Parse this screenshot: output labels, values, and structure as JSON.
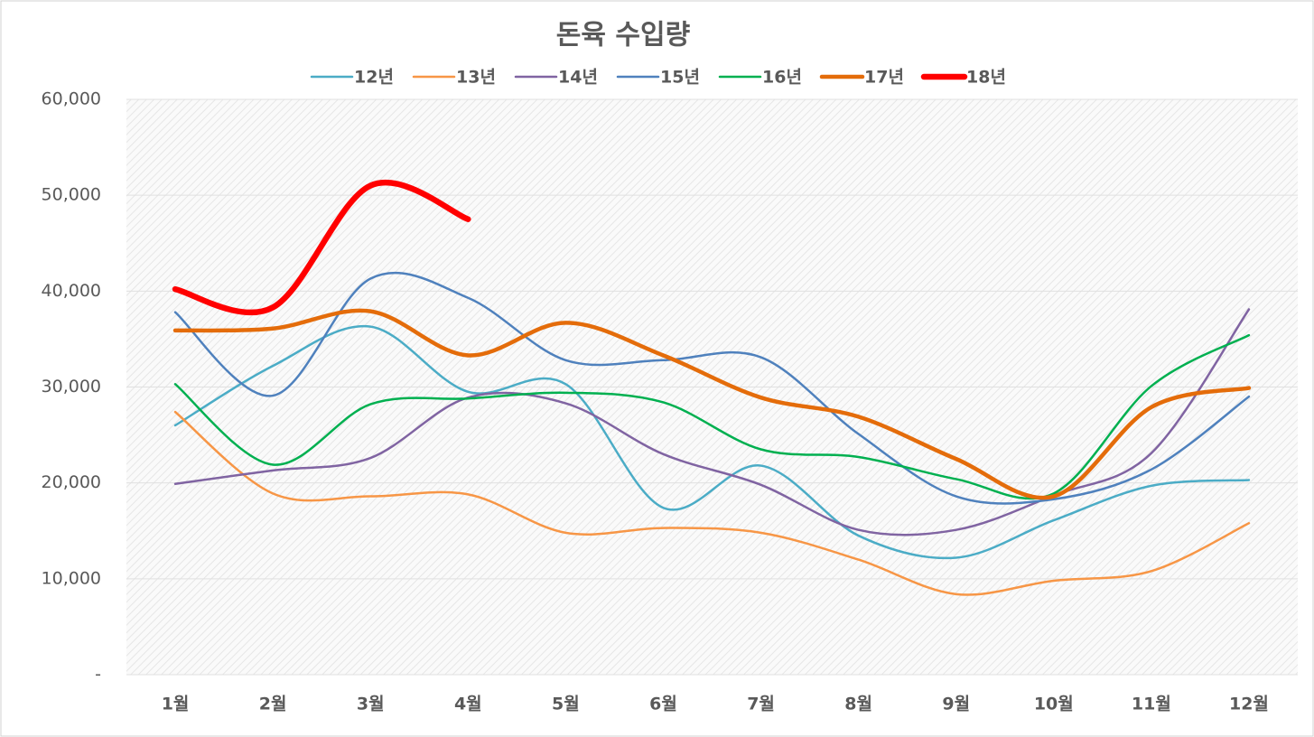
{
  "chart_data": {
    "type": "line",
    "title": "돈육 수입량",
    "categories": [
      "1월",
      "2월",
      "3월",
      "4월",
      "5월",
      "6월",
      "7월",
      "8월",
      "9월",
      "10월",
      "11월",
      "12월"
    ],
    "series": [
      {
        "name": "12년",
        "color": "#4bacc6",
        "linewidth": 2.5,
        "values": [
          26000,
          32200,
          36300,
          29500,
          30300,
          17400,
          21800,
          14500,
          12200,
          16100,
          19700,
          20300
        ]
      },
      {
        "name": "13년",
        "color": "#f79646",
        "linewidth": 2.5,
        "values": [
          27400,
          18900,
          18600,
          18800,
          14800,
          15300,
          14800,
          12000,
          8400,
          9800,
          10800,
          15800
        ]
      },
      {
        "name": "14년",
        "color": "#8064a2",
        "linewidth": 2.5,
        "values": [
          19900,
          21300,
          22600,
          28900,
          28300,
          23000,
          19800,
          15100,
          15100,
          18700,
          23100,
          38100
        ]
      },
      {
        "name": "15년",
        "color": "#4f81bd",
        "linewidth": 2.5,
        "values": [
          37800,
          29100,
          41300,
          39300,
          32800,
          32800,
          33100,
          25100,
          18600,
          18300,
          21400,
          29000
        ]
      },
      {
        "name": "16년",
        "color": "#00b050",
        "linewidth": 2.5,
        "values": [
          30300,
          21900,
          28200,
          28800,
          29400,
          28400,
          23500,
          22700,
          20400,
          18900,
          30100,
          35400
        ]
      },
      {
        "name": "17년",
        "color": "#e46c0a",
        "linewidth": 4.5,
        "values": [
          35900,
          36100,
          37900,
          33300,
          36700,
          33300,
          28900,
          26900,
          22500,
          18600,
          27900,
          29900
        ]
      },
      {
        "name": "18년",
        "color": "#ff0000",
        "linewidth": 6.5,
        "values": [
          40200,
          38300,
          51000,
          47500,
          null,
          null,
          null,
          null,
          null,
          null,
          null,
          null
        ]
      }
    ],
    "ylim": [
      0,
      60000
    ],
    "yticks": [
      {
        "value": 0,
        "label": "-"
      },
      {
        "value": 10000,
        "label": "10,000"
      },
      {
        "value": 20000,
        "label": "20,000"
      },
      {
        "value": 30000,
        "label": "30,000"
      },
      {
        "value": 40000,
        "label": "40,000"
      },
      {
        "value": 50000,
        "label": "50,000"
      },
      {
        "value": 60000,
        "label": "60,000"
      }
    ],
    "grid": true,
    "legend": "top"
  }
}
